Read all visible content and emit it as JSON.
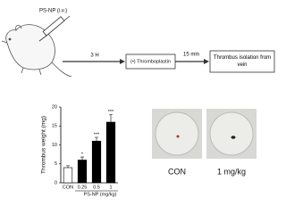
{
  "diagram": {
    "injection": "PS-NP (i.v.)",
    "step1_time": "3 H",
    "step1": "(•) Thromboplastin",
    "step2_time": "15 min",
    "step2": "Thrombus isolation from vein"
  },
  "chart_data": {
    "type": "bar",
    "ylabel": "Thrombus weight (mg)",
    "xlabel": "PS-NP (mg/kg)",
    "categories": [
      "CON",
      "0.25",
      "0.5",
      "1"
    ],
    "values": [
      4,
      6,
      11,
      16
    ],
    "errors": [
      0.5,
      0.8,
      1,
      2
    ],
    "colors": [
      "#ffffff",
      "#000000",
      "#000000",
      "#000000"
    ],
    "significance": [
      null,
      "*",
      "***",
      "***"
    ],
    "ylim": [
      0,
      20
    ],
    "yticks": [
      0,
      5,
      10,
      15,
      20
    ]
  },
  "photos": {
    "labels": [
      "CON",
      "1 mg/kg"
    ]
  }
}
